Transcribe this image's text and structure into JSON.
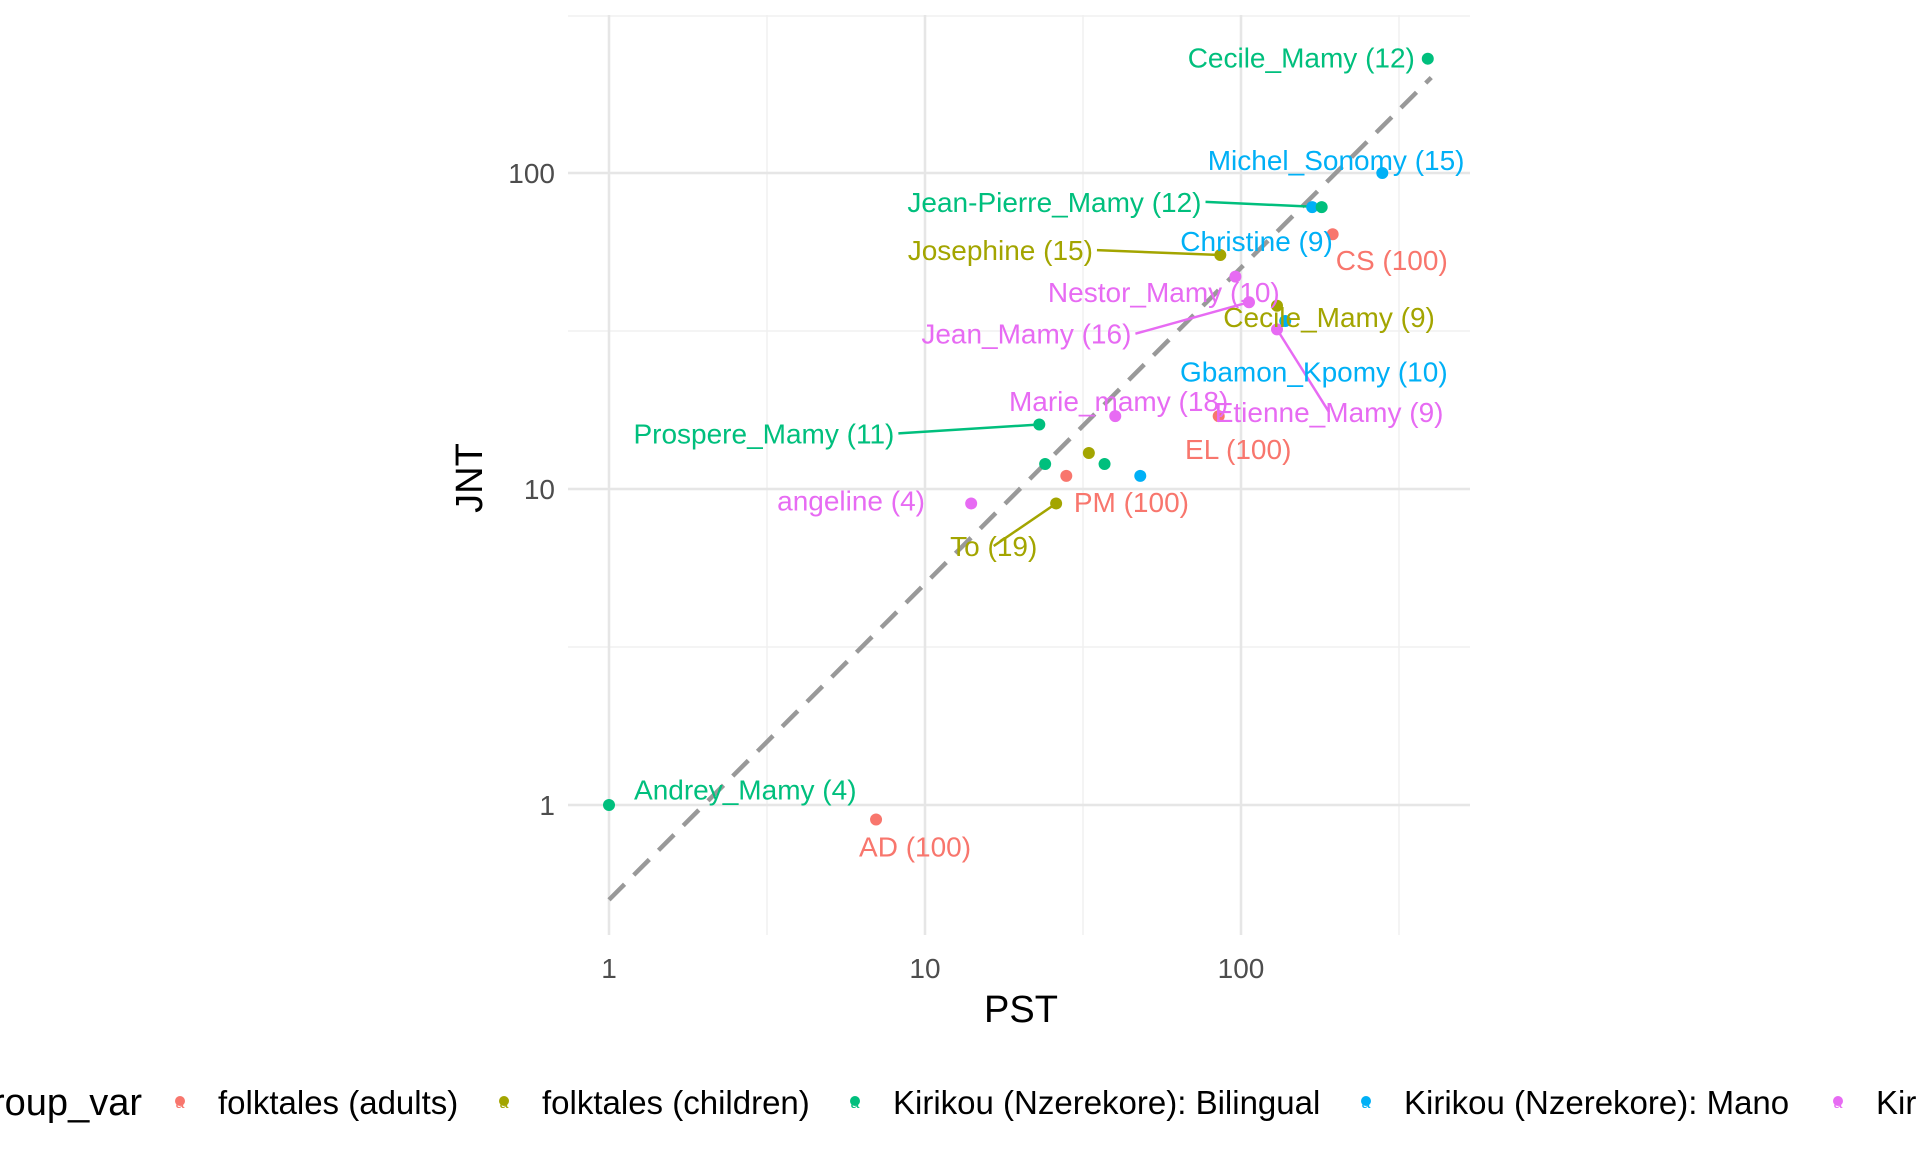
{
  "chart_data": {
    "type": "scatter",
    "xlabel": "PST",
    "ylabel": "JNT",
    "x_scale": "log10",
    "y_scale": "log10",
    "xlim": [
      0.85,
      500
    ],
    "ylim": [
      0.4,
      320
    ],
    "x_ticks": [
      {
        "value": 1,
        "label": "1"
      },
      {
        "value": 10,
        "label": "10"
      },
      {
        "value": 100,
        "label": "100"
      }
    ],
    "y_ticks": [
      {
        "value": 1,
        "label": "1"
      },
      {
        "value": 10,
        "label": "10"
      },
      {
        "value": 100,
        "label": "100"
      }
    ],
    "grid": true,
    "reference_line": {
      "style": "dashed",
      "color": "#999999",
      "slope": 1,
      "intercept_log10": -0.3
    },
    "legend": {
      "title": "group_var",
      "position": "bottom",
      "key_glyph": "a",
      "entries": [
        {
          "name": "folktales (adults)",
          "color": "#F8766D"
        },
        {
          "name": "folktales (children)",
          "color": "#A3A500"
        },
        {
          "name": "Kirikou (Nzerekore): Bilingual",
          "color": "#00BF7D"
        },
        {
          "name": "Kirikou (Nzerekore): Mano",
          "color": "#00B0F6"
        },
        {
          "name": "Kir",
          "color": "#E76BF3"
        }
      ]
    },
    "points": [
      {
        "x": 1.0,
        "y": 1.0,
        "group": 2,
        "label": "Andrey_Mamy (4)",
        "lx": 1.2,
        "ly": 1.12,
        "anchor": "start"
      },
      {
        "x": 7.0,
        "y": 0.9,
        "group": 0,
        "label": "AD (100)",
        "lx": 9.3,
        "ly": 0.74,
        "anchor": "middle"
      },
      {
        "x": 14.0,
        "y": 9.0,
        "group": 4,
        "label": "angeline (4)",
        "lx": 10.0,
        "ly": 9.2,
        "anchor": "end"
      },
      {
        "x": 26.0,
        "y": 9.0,
        "group": 1,
        "label": "To (19)",
        "lx": 16.5,
        "ly": 6.6,
        "anchor": "middle",
        "leader": true
      },
      {
        "x": 28.0,
        "y": 11.0,
        "group": 0,
        "label": "PM (100)",
        "lx": 45.0,
        "ly": 9.1,
        "anchor": "middle"
      },
      {
        "x": 24.0,
        "y": 12.0,
        "group": 2
      },
      {
        "x": 33.0,
        "y": 13.0,
        "group": 1
      },
      {
        "x": 37.0,
        "y": 12.0,
        "group": 2
      },
      {
        "x": 23.0,
        "y": 16.0,
        "group": 2,
        "label": "Prospere_Mamy (11)",
        "lx": 8.0,
        "ly": 15.0,
        "anchor": "end",
        "leader": true
      },
      {
        "x": 40.0,
        "y": 17.0,
        "group": 4,
        "label": "Marie_mamy (18)",
        "lx": 41.0,
        "ly": 19.0,
        "anchor": "middle"
      },
      {
        "x": 48.0,
        "y": 11.0,
        "group": 3
      },
      {
        "x": 85.0,
        "y": 17.0,
        "group": 0,
        "label": "EL (100)",
        "lx": 98.0,
        "ly": 13.4,
        "anchor": "middle"
      },
      {
        "x": 86.0,
        "y": 55.0,
        "group": 1,
        "label": "Josephine (15)",
        "lx": 34.0,
        "ly": 57.0,
        "anchor": "end",
        "leader": true
      },
      {
        "x": 96.0,
        "y": 47.0,
        "group": 4,
        "label": "Nestor_Mamy (10)",
        "lx": 57.0,
        "ly": 42.0,
        "anchor": "middle"
      },
      {
        "x": 106.0,
        "y": 39.0,
        "group": 4,
        "label": "Jean_Mamy (16)",
        "lx": 45.0,
        "ly": 31.0,
        "anchor": "end",
        "leader": true
      },
      {
        "x": 130.0,
        "y": 38.0,
        "group": 1,
        "label": "Cecile_Mamy (9)",
        "lx": 190.0,
        "ly": 35.0,
        "anchor": "middle"
      },
      {
        "x": 138.0,
        "y": 34.0,
        "group": 3,
        "label": "Gbamon_Kpomy (10)",
        "lx": 170.0,
        "ly": 23.5,
        "anchor": "middle"
      },
      {
        "x": 130.0,
        "y": 32.0,
        "group": 4,
        "label": "Etienne_Mamy (9)",
        "lx": 190.0,
        "ly": 17.5,
        "anchor": "middle",
        "leader": true
      },
      {
        "x": 168.0,
        "y": 78.0,
        "group": 3,
        "label": "Christine (9)",
        "lx": 112.0,
        "ly": 61.0,
        "anchor": "middle"
      },
      {
        "x": 180.0,
        "y": 78.0,
        "group": 2,
        "label": "Jean-Pierre_Mamy (12)",
        "lx": 75.0,
        "ly": 81.0,
        "anchor": "end",
        "leader": true
      },
      {
        "x": 195.0,
        "y": 64.0,
        "group": 0,
        "label": "CS (100)",
        "lx": 300.0,
        "ly": 53.0,
        "anchor": "middle"
      },
      {
        "x": 280.0,
        "y": 100.0,
        "group": 3,
        "label": "Michel_Sonomy (15)",
        "lx": 200.0,
        "ly": 110.0,
        "anchor": "middle"
      },
      {
        "x": 390.0,
        "y": 230.0,
        "group": 2,
        "label": "Cecile_Mamy (12)",
        "lx": 355.0,
        "ly": 232.0,
        "anchor": "end"
      }
    ]
  }
}
